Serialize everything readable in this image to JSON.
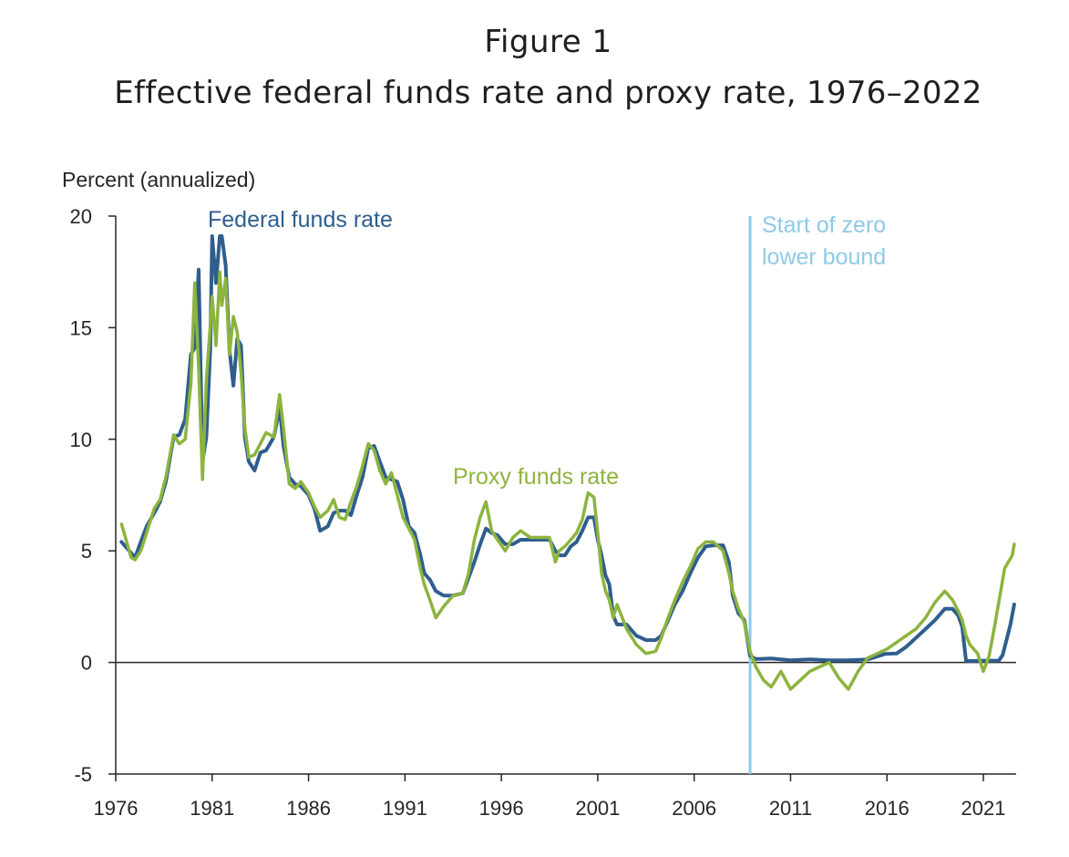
{
  "figure_label": "Figure 1",
  "figure_title": "Effective federal funds rate and proxy rate, 1976–2022",
  "chart_data": {
    "type": "line",
    "title": "Effective federal funds rate and proxy rate, 1976–2022",
    "ylabel": "Percent (annualized)",
    "xlabel": "",
    "xlim": [
      1976.0,
      2022.7
    ],
    "ylim": [
      -5,
      20
    ],
    "x_ticks": [
      1976,
      1981,
      1986,
      1991,
      1996,
      2001,
      2006,
      2011,
      2016,
      2021
    ],
    "x_tick_labels": [
      "1976",
      "1981",
      "1986",
      "1991",
      "1996",
      "2001",
      "2006",
      "2011",
      "2016",
      "2021"
    ],
    "y_ticks": [
      20,
      15,
      10,
      5,
      0,
      -5
    ],
    "y_tick_labels": [
      "20",
      "15",
      "10",
      "5",
      "0",
      "-5"
    ],
    "grid": false,
    "colors": {
      "fed": "#2f5e8e",
      "proxy": "#8db43e",
      "zlb": "#8ecae6",
      "axis": "#262626"
    },
    "series": [
      {
        "name": "Federal funds rate",
        "x": [
          1976.3,
          1976.5,
          1976.8,
          1977.0,
          1977.3,
          1977.6,
          1978.0,
          1978.3,
          1978.6,
          1979.0,
          1979.3,
          1979.6,
          1979.9,
          1980.1,
          1980.3,
          1980.5,
          1980.7,
          1980.9,
          1981.0,
          1981.2,
          1981.4,
          1981.5,
          1981.7,
          1981.9,
          1982.1,
          1982.3,
          1982.5,
          1982.7,
          1982.9,
          1983.2,
          1983.5,
          1983.8,
          1984.2,
          1984.5,
          1984.7,
          1985.0,
          1985.3,
          1985.6,
          1986.0,
          1986.3,
          1986.6,
          1987.0,
          1987.3,
          1987.6,
          1987.9,
          1988.2,
          1988.5,
          1988.8,
          1989.1,
          1989.4,
          1989.7,
          1990.0,
          1990.3,
          1990.6,
          1990.9,
          1991.2,
          1991.5,
          1991.8,
          1992.0,
          1992.3,
          1992.6,
          1993.0,
          1993.5,
          1994.0,
          1994.3,
          1994.6,
          1994.9,
          1995.2,
          1995.5,
          1995.8,
          1996.2,
          1996.6,
          1997.0,
          1997.5,
          1998.0,
          1998.5,
          1998.8,
          1999.0,
          1999.3,
          1999.6,
          1999.9,
          2000.2,
          2000.5,
          2000.8,
          2001.0,
          2001.2,
          2001.4,
          2001.6,
          2001.8,
          2002.0,
          2002.5,
          2003.0,
          2003.5,
          2004.0,
          2004.3,
          2004.6,
          2005.0,
          2005.4,
          2005.8,
          2006.2,
          2006.6,
          2007.0,
          2007.5,
          2007.8,
          2008.0,
          2008.3,
          2008.6,
          2008.9,
          2009.2,
          2010.0,
          2011.0,
          2012.0,
          2013.0,
          2014.0,
          2015.0,
          2015.9,
          2016.5,
          2017.0,
          2017.5,
          2018.0,
          2018.5,
          2019.0,
          2019.4,
          2019.7,
          2019.9,
          2020.1,
          2020.3,
          2021.0,
          2021.8,
          2022.0,
          2022.2,
          2022.4,
          2022.6
        ],
        "values": [
          5.4,
          5.2,
          4.9,
          4.7,
          5.4,
          6.1,
          6.7,
          7.2,
          8.1,
          10.1,
          10.2,
          10.9,
          13.8,
          14.1,
          17.6,
          9.0,
          10.1,
          14.0,
          19.1,
          17.0,
          19.1,
          19.1,
          17.8,
          14.0,
          12.4,
          14.5,
          14.2,
          10.1,
          9.0,
          8.6,
          9.4,
          9.5,
          10.1,
          11.4,
          9.7,
          8.3,
          8.0,
          7.9,
          7.5,
          6.9,
          5.9,
          6.1,
          6.7,
          6.8,
          6.8,
          6.6,
          7.5,
          8.3,
          9.6,
          9.7,
          9.0,
          8.3,
          8.2,
          8.1,
          7.3,
          6.1,
          5.8,
          4.8,
          4.0,
          3.7,
          3.2,
          3.0,
          3.0,
          3.1,
          3.8,
          4.5,
          5.3,
          6.0,
          5.8,
          5.7,
          5.3,
          5.3,
          5.5,
          5.5,
          5.5,
          5.5,
          5.0,
          4.8,
          4.8,
          5.2,
          5.4,
          5.9,
          6.5,
          6.5,
          5.5,
          4.8,
          3.9,
          3.5,
          2.1,
          1.7,
          1.7,
          1.2,
          1.0,
          1.0,
          1.2,
          1.8,
          2.6,
          3.2,
          4.0,
          4.7,
          5.2,
          5.25,
          5.25,
          4.5,
          3.0,
          2.2,
          1.9,
          0.3,
          0.15,
          0.18,
          0.1,
          0.14,
          0.1,
          0.1,
          0.13,
          0.38,
          0.4,
          0.7,
          1.1,
          1.5,
          1.9,
          2.4,
          2.4,
          2.1,
          1.6,
          0.08,
          0.06,
          0.08,
          0.08,
          0.33,
          1.0,
          1.7,
          2.6
        ]
      },
      {
        "name": "Proxy funds rate",
        "x": [
          1976.3,
          1976.5,
          1976.8,
          1977.0,
          1977.3,
          1977.6,
          1978.0,
          1978.3,
          1978.6,
          1979.0,
          1979.3,
          1979.6,
          1979.9,
          1980.1,
          1980.3,
          1980.5,
          1980.7,
          1980.9,
          1981.0,
          1981.2,
          1981.4,
          1981.5,
          1981.7,
          1981.9,
          1982.1,
          1982.3,
          1982.5,
          1982.7,
          1982.9,
          1983.2,
          1983.5,
          1983.8,
          1984.2,
          1984.5,
          1984.7,
          1985.0,
          1985.3,
          1985.6,
          1986.0,
          1986.3,
          1986.6,
          1987.0,
          1987.3,
          1987.6,
          1987.9,
          1988.2,
          1988.5,
          1988.8,
          1989.1,
          1989.4,
          1989.7,
          1990.0,
          1990.3,
          1990.6,
          1990.9,
          1991.2,
          1991.5,
          1991.8,
          1992.0,
          1992.3,
          1992.6,
          1993.0,
          1993.5,
          1994.0,
          1994.3,
          1994.6,
          1994.9,
          1995.2,
          1995.5,
          1995.8,
          1996.2,
          1996.6,
          1997.0,
          1997.5,
          1998.0,
          1998.5,
          1998.8,
          1999.0,
          1999.3,
          1999.6,
          1999.9,
          2000.2,
          2000.5,
          2000.8,
          2001.0,
          2001.2,
          2001.4,
          2001.6,
          2001.8,
          2002.0,
          2002.5,
          2003.0,
          2003.5,
          2004.0,
          2004.3,
          2004.6,
          2005.0,
          2005.4,
          2005.8,
          2006.2,
          2006.6,
          2007.0,
          2007.5,
          2007.8,
          2008.0,
          2008.3,
          2008.6,
          2008.9,
          2009.2,
          2009.6,
          2010.0,
          2010.5,
          2011.0,
          2011.5,
          2012.0,
          2012.5,
          2013.0,
          2013.5,
          2014.0,
          2014.5,
          2015.0,
          2015.5,
          2016.0,
          2016.5,
          2017.0,
          2017.5,
          2018.0,
          2018.5,
          2019.0,
          2019.4,
          2019.7,
          2019.9,
          2020.1,
          2020.3,
          2020.7,
          2021.0,
          2021.3,
          2021.6,
          2021.9,
          2022.1,
          2022.3,
          2022.5,
          2022.6
        ],
        "values": [
          6.2,
          5.6,
          4.7,
          4.6,
          5.0,
          5.8,
          6.9,
          7.3,
          8.3,
          10.2,
          9.8,
          10.0,
          12.5,
          17.0,
          13.2,
          8.2,
          12.6,
          15.1,
          16.4,
          14.2,
          17.5,
          16.0,
          17.2,
          13.8,
          15.5,
          14.8,
          13.0,
          10.5,
          9.2,
          9.3,
          9.8,
          10.3,
          10.1,
          12.0,
          10.5,
          8.0,
          7.8,
          8.1,
          7.6,
          7.0,
          6.5,
          6.8,
          7.3,
          6.5,
          6.4,
          7.2,
          7.9,
          8.8,
          9.8,
          9.5,
          8.6,
          8.0,
          8.5,
          7.5,
          6.5,
          6.0,
          5.5,
          4.2,
          3.5,
          2.8,
          2.0,
          2.5,
          3.0,
          3.1,
          4.0,
          5.5,
          6.5,
          7.2,
          5.9,
          5.5,
          5.0,
          5.6,
          5.9,
          5.6,
          5.6,
          5.6,
          4.5,
          5.0,
          5.2,
          5.5,
          5.8,
          6.4,
          7.6,
          7.4,
          5.8,
          4.0,
          3.2,
          2.8,
          2.0,
          2.6,
          1.5,
          0.8,
          0.4,
          0.5,
          1.1,
          1.9,
          2.8,
          3.6,
          4.3,
          5.1,
          5.4,
          5.4,
          5.0,
          4.0,
          3.2,
          2.4,
          1.8,
          0.5,
          -0.2,
          -0.8,
          -1.1,
          -0.4,
          -1.2,
          -0.8,
          -0.4,
          -0.2,
          0.0,
          -0.7,
          -1.2,
          -0.4,
          0.2,
          0.4,
          0.6,
          0.9,
          1.2,
          1.5,
          2.0,
          2.7,
          3.2,
          2.8,
          2.3,
          1.9,
          1.2,
          0.8,
          0.4,
          -0.4,
          0.3,
          1.7,
          3.2,
          4.2,
          4.5,
          4.8,
          5.3
        ]
      }
    ],
    "annotations": [
      {
        "text": "Federal funds rate",
        "series": "Federal funds rate"
      },
      {
        "text": "Proxy funds rate",
        "series": "Proxy funds rate"
      },
      {
        "text_lines": [
          "Start of zero",
          "lower bound"
        ],
        "x": 2008.9
      }
    ]
  }
}
